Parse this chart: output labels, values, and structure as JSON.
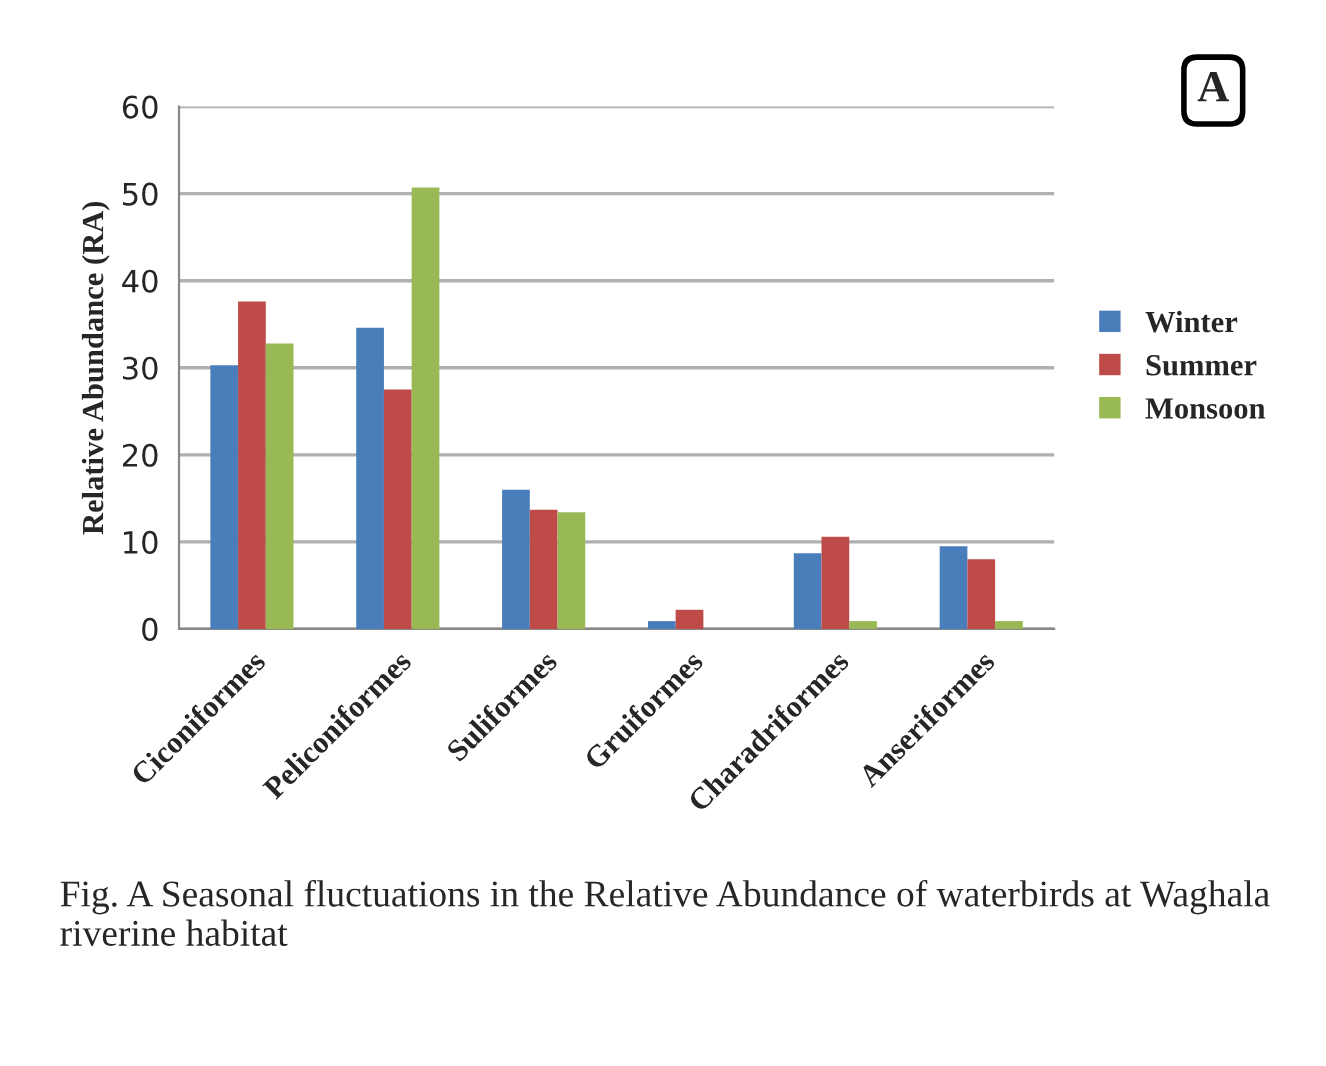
{
  "chart_data": {
    "type": "bar",
    "ylabel": "Relative Abundance (RA)",
    "categories": [
      "Ciconiformes",
      "Peliconiformes",
      "Suliformes",
      "Gruiformes",
      "Charadriformes",
      "Anseriformes"
    ],
    "series": [
      {
        "name": "Winter",
        "color": "#4a7ebb",
        "values": [
          30.3,
          34.6,
          16.0,
          0.9,
          8.7,
          9.5
        ]
      },
      {
        "name": "Summer",
        "color": "#be4b48",
        "values": [
          37.6,
          27.5,
          13.7,
          2.2,
          10.6,
          8.0
        ]
      },
      {
        "name": "Monsoon",
        "color": "#98b954",
        "values": [
          32.8,
          50.7,
          13.4,
          null,
          0.9,
          0.9
        ]
      }
    ],
    "ylim": [
      0,
      60
    ],
    "yticks": [
      0,
      10,
      20,
      30,
      40,
      50,
      60
    ],
    "grid": "y",
    "legend": "right",
    "annotations": [
      "A",
      "Fig. A Seasonal fluctuations in the Relative Abundance of waterbirds at Waghala riverine habitat"
    ]
  }
}
